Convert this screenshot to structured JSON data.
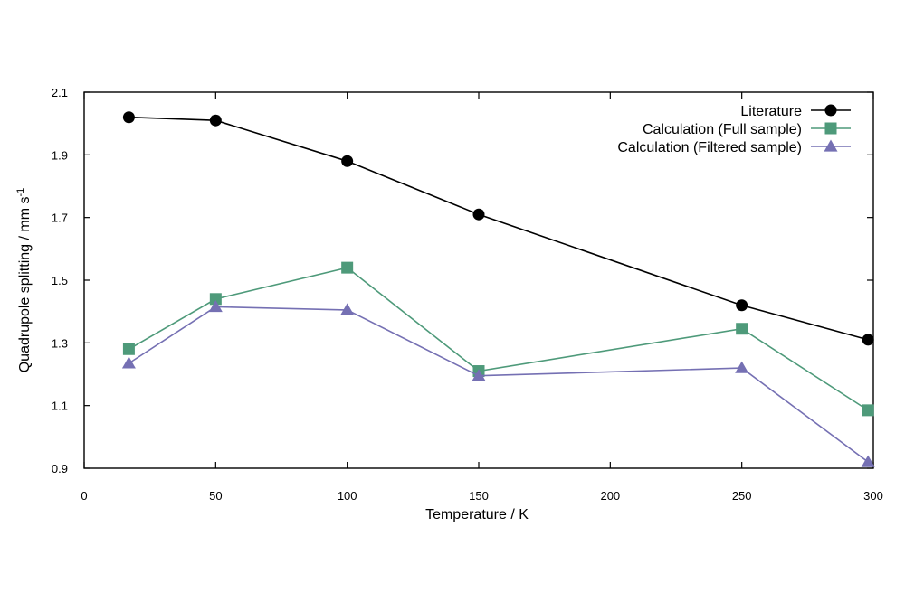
{
  "chart_data": {
    "type": "line",
    "title": "",
    "xlabel": "Temperature / K",
    "ylabel": "Quadrupole splitting / mm s",
    "ylabel_superscript": "-1",
    "xlim": [
      0,
      300
    ],
    "ylim": [
      0.9,
      2.1
    ],
    "xticks": [
      0,
      50,
      100,
      150,
      200,
      250,
      300
    ],
    "yticks": [
      0.9,
      1.1,
      1.3,
      1.5,
      1.7,
      1.9,
      2.1
    ],
    "xtick_labels": [
      "0",
      "50",
      "100",
      "150",
      "200",
      "250",
      "300"
    ],
    "ytick_labels": [
      "0.9",
      "1.1",
      "1.3",
      "1.5",
      "1.7",
      "1.9",
      "2.1"
    ],
    "grid": false,
    "legend_position": "top-right",
    "series": [
      {
        "name": "Literature",
        "color": "#000000",
        "marker": "circle",
        "x": [
          17,
          50,
          100,
          150,
          250,
          298
        ],
        "y": [
          2.02,
          2.01,
          1.88,
          1.71,
          1.42,
          1.31
        ]
      },
      {
        "name": "Calculation (Full sample)",
        "color": "#4e9a7a",
        "marker": "square",
        "x": [
          17,
          50,
          100,
          150,
          250,
          298
        ],
        "y": [
          1.28,
          1.44,
          1.54,
          1.21,
          1.345,
          1.085
        ]
      },
      {
        "name": "Calculation (Filtered sample)",
        "color": "#7570b3",
        "marker": "triangle",
        "x": [
          17,
          50,
          100,
          150,
          250,
          298
        ],
        "y": [
          1.235,
          1.415,
          1.405,
          1.195,
          1.22,
          0.92
        ]
      }
    ]
  }
}
